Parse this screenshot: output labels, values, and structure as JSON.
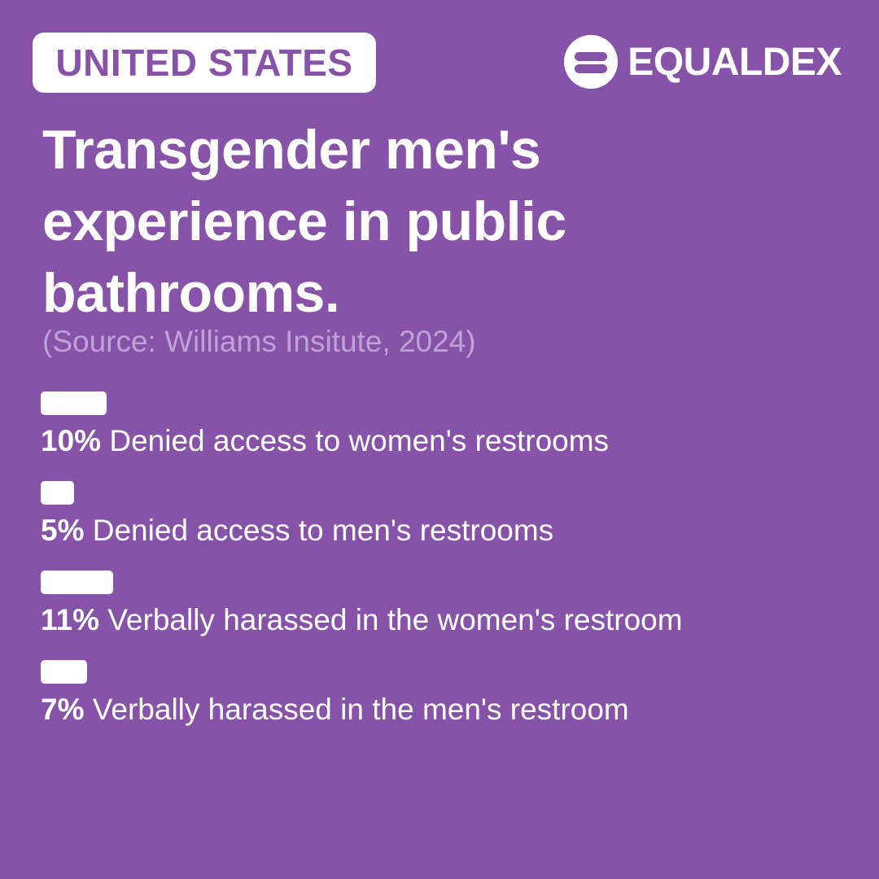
{
  "badge": {
    "country": "UNITED STATES"
  },
  "brand": {
    "name": "EQUALDEX",
    "icon": "equaldex-logo-icon"
  },
  "colors": {
    "background": "#8653a8",
    "foreground": "#ffffff",
    "source_text": "#bea2d4"
  },
  "title": "Transgender men's experience in public bathrooms.",
  "source": "(Source: Williams Insitute, 2024)",
  "chart_data": {
    "type": "bar",
    "title": "Transgender men's experience in public bathrooms.",
    "subtitle": "(Source: Williams Insitute, 2024)",
    "categories": [
      "Denied access to women's restrooms",
      "Denied access to men's restrooms",
      "Verbally harassed in the women's restroom",
      "Verbally harassed in the men's restroom"
    ],
    "values": [
      10,
      5,
      11,
      7
    ],
    "value_labels": [
      "10%",
      "5%",
      "11%",
      "7%"
    ],
    "unit": "%",
    "xlabel": "",
    "ylabel": "",
    "grid": false,
    "legend": "none"
  }
}
